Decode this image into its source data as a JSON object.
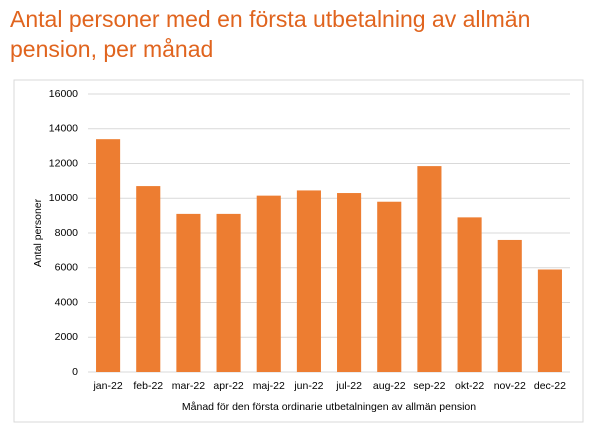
{
  "chart_data": {
    "type": "bar",
    "title": "Antal personer med en första utbetalning av allmän pension, per månad",
    "xlabel": "Månad för den första ordinarie utbetalningen av allmän pension",
    "ylabel": "Antal personer",
    "categories": [
      "jan-22",
      "feb-22",
      "mar-22",
      "apr-22",
      "maj-22",
      "jun-22",
      "jul-22",
      "aug-22",
      "sep-22",
      "okt-22",
      "nov-22",
      "dec-22"
    ],
    "values": [
      13400,
      10700,
      9100,
      9100,
      10150,
      10450,
      10300,
      9800,
      11850,
      8900,
      7600,
      5900
    ],
    "color": "#ed7d31",
    "ylim": [
      0,
      16000
    ],
    "yticks": [
      0,
      2000,
      4000,
      6000,
      8000,
      10000,
      12000,
      14000,
      16000
    ],
    "grid": true
  }
}
